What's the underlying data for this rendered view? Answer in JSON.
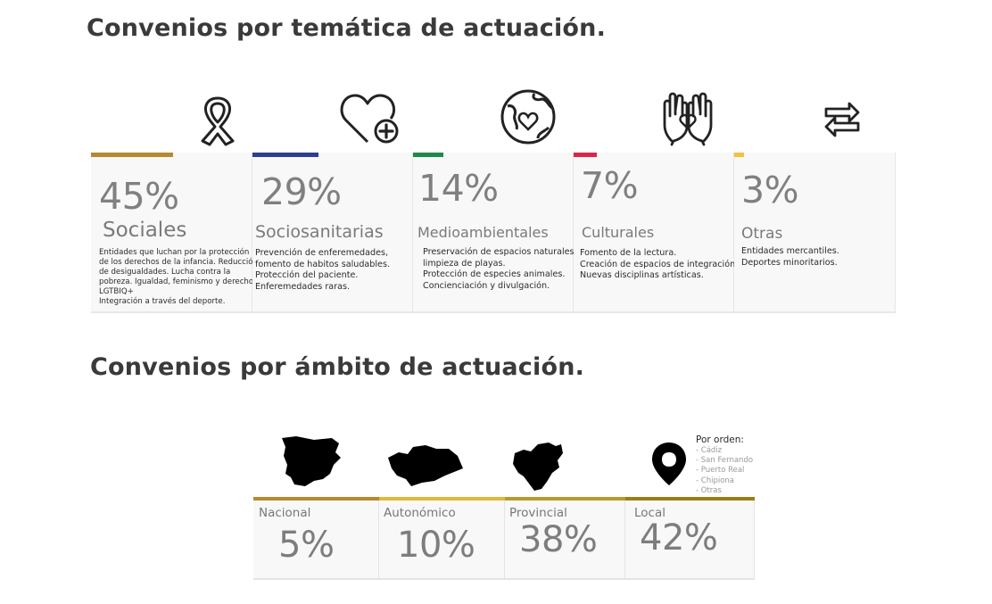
{
  "section_tematica": {
    "title": "Convenios por temática de actuación.",
    "cards": [
      {
        "percent": "45%",
        "label": "Sociales",
        "color": "#b5892e",
        "icon": "ribbon-icon",
        "desc": [
          "Entidades que luchan por la protección",
          "de los derechos de la infancia. Reducción",
          "de desigualdades. Lucha contra la",
          "pobreza. Igualdad, feminismo y derechos",
          "LGTBIQ+",
          "Integración a través del deporte."
        ]
      },
      {
        "percent": "29%",
        "label": "Sociosanitarias",
        "color": "#2d3e8f",
        "icon": "heart-plus-icon",
        "desc": [
          "Prevención de enferemedades,",
          "fomento de habitos saludables.",
          "Protección del paciente.",
          "Enferemedades raras."
        ]
      },
      {
        "percent": "14%",
        "label": "Medioambientales",
        "color": "#1d8a4a",
        "icon": "earth-heart-icon",
        "desc": [
          "Preservación de espacios naturales,",
          "limpieza de playas.",
          "Protección de especies animales.",
          "Concienciación y divulgación."
        ]
      },
      {
        "percent": "7%",
        "label": "Culturales",
        "color": "#d8264c",
        "icon": "hands-heart-icon",
        "desc": [
          "Fomento de la lectura.",
          "Creación de espacios de integración.",
          "Nuevas disciplinas artísticas."
        ]
      },
      {
        "percent": "3%",
        "label": "Otras",
        "color": "#f2c23c",
        "icon": "exchange-arrows-icon",
        "desc": [
          "Entidades mercantiles.",
          "Deportes minoritarios."
        ]
      }
    ]
  },
  "section_ambito": {
    "title": "Convenios por ámbito de actuación.",
    "cards": [
      {
        "label": "Nacional",
        "percent": "5%",
        "color": "#b5892e",
        "icon": "spain-map-icon"
      },
      {
        "label": "Autonómico",
        "percent": "10%",
        "color": "#e0b93a",
        "icon": "andalucia-map-icon"
      },
      {
        "label": "Provincial",
        "percent": "38%",
        "color": "#b89a2e",
        "icon": "cadiz-map-icon"
      },
      {
        "label": "Local",
        "percent": "42%",
        "color": "#9c7d14",
        "icon": "location-pin-icon"
      }
    ],
    "orden": {
      "title": "Por orden:",
      "items": [
        "- Cádiz",
        "- San Fernando",
        "- Puerto Real",
        "- Chipiona",
        "- Otras"
      ]
    }
  }
}
